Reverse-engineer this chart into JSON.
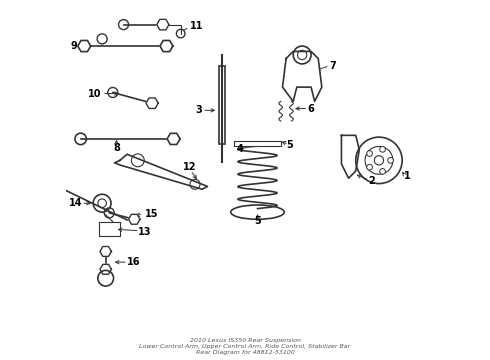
{
  "title": "2010 Lexus IS350 Rear Suspension",
  "subtitle": "Lower Control Arm, Upper Control Arm, Ride Control, Stabilizer Bar",
  "part_number": "48812-53100",
  "bg_color": "#ffffff",
  "line_color": "#333333",
  "label_color": "#000000"
}
